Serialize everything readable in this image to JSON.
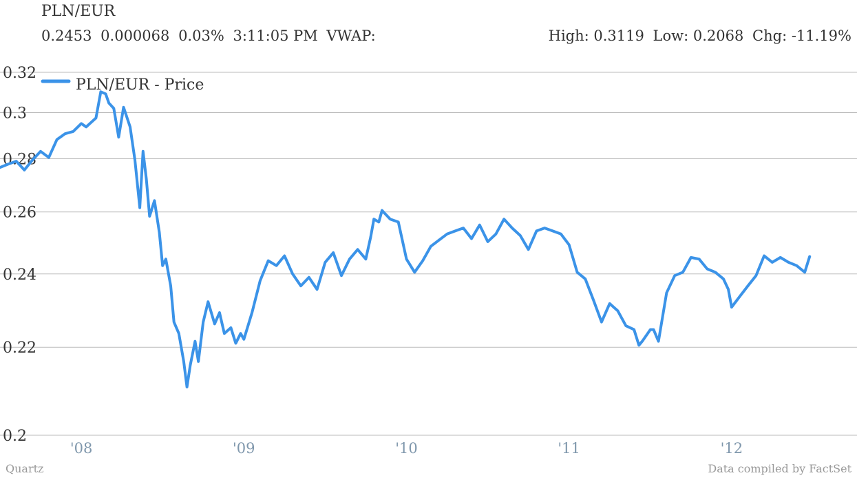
{
  "header": {
    "title": "PLN/EUR",
    "quote": {
      "price": "0.2453",
      "change": "0.000068",
      "change_pct": "0.03%",
      "time": "3:11:05 PM",
      "vwap_label": "VWAP:"
    },
    "stats": {
      "high": "High: 0.3119",
      "low": "Low: 0.2068",
      "chg": "Chg: -11.19%"
    }
  },
  "footer": {
    "source_left": "Quartz",
    "source_right": "Data compiled by FactSet"
  },
  "colors": {
    "line": "#3b93e8",
    "grid": "#bbbbbb",
    "xtick": "#7f97ac",
    "ytick": "#333333"
  },
  "chart_data": {
    "type": "line",
    "title": "",
    "xlabel": "",
    "ylabel": "",
    "x_range": [
      2007.5,
      2012.75
    ],
    "ylim": [
      0.2,
      0.32
    ],
    "y_ticks": [
      0.2,
      0.22,
      0.24,
      0.26,
      0.28,
      0.3,
      0.32
    ],
    "y_tick_labels": [
      "0.2",
      "0.22",
      "0.24",
      "0.26",
      "0.28",
      "0.3",
      "0.32"
    ],
    "x_ticks": [
      2008,
      2009,
      2010,
      2011,
      2012
    ],
    "x_tick_labels": [
      "'08",
      "'09",
      "'10",
      "'11",
      "'12"
    ],
    "grid": "horizontal",
    "legend": "top-left",
    "series": [
      {
        "name": "PLN/EUR - Price",
        "x": [
          2007.5,
          2007.55,
          2007.6,
          2007.65,
          2007.7,
          2007.75,
          2007.8,
          2007.85,
          2007.9,
          2007.95,
          2008.0,
          2008.03,
          2008.06,
          2008.09,
          2008.12,
          2008.15,
          2008.17,
          2008.2,
          2008.23,
          2008.26,
          2008.3,
          2008.33,
          2008.36,
          2008.38,
          2008.4,
          2008.42,
          2008.45,
          2008.48,
          2008.5,
          2008.52,
          2008.55,
          2008.57,
          2008.6,
          2008.63,
          2008.65,
          2008.67,
          2008.7,
          2008.72,
          2008.75,
          2008.78,
          2008.82,
          2008.85,
          2008.88,
          2008.92,
          2008.95,
          2008.98,
          2009.0,
          2009.05,
          2009.1,
          2009.15,
          2009.2,
          2009.25,
          2009.3,
          2009.35,
          2009.4,
          2009.45,
          2009.5,
          2009.55,
          2009.6,
          2009.65,
          2009.7,
          2009.75,
          2009.78,
          2009.8,
          2009.83,
          2009.85,
          2009.9,
          2009.95,
          2010.0,
          2010.05,
          2010.1,
          2010.15,
          2010.2,
          2010.25,
          2010.3,
          2010.35,
          2010.4,
          2010.45,
          2010.5,
          2010.55,
          2010.6,
          2010.65,
          2010.7,
          2010.75,
          2010.8,
          2010.85,
          2010.9,
          2010.95,
          2011.0,
          2011.05,
          2011.1,
          2011.15,
          2011.2,
          2011.25,
          2011.3,
          2011.35,
          2011.4,
          2011.43,
          2011.45,
          2011.5,
          2011.52,
          2011.55,
          2011.6,
          2011.65,
          2011.7,
          2011.75,
          2011.8,
          2011.85,
          2011.9,
          2011.95,
          2011.98,
          2012.0,
          2012.05,
          2012.1,
          2012.15,
          2012.2,
          2012.25,
          2012.3,
          2012.35,
          2012.4,
          2012.45,
          2012.48
        ],
        "values": [
          0.2765,
          0.2778,
          0.279,
          0.2755,
          0.2795,
          0.283,
          0.2805,
          0.288,
          0.2905,
          0.2915,
          0.295,
          0.2935,
          0.2955,
          0.2975,
          0.31,
          0.309,
          0.3045,
          0.302,
          0.289,
          0.3025,
          0.2935,
          0.2795,
          0.2615,
          0.283,
          0.272,
          0.2585,
          0.264,
          0.253,
          0.2425,
          0.2445,
          0.2365,
          0.2265,
          0.2235,
          0.2165,
          0.2105,
          0.2155,
          0.2215,
          0.2165,
          0.2265,
          0.232,
          0.226,
          0.229,
          0.2235,
          0.225,
          0.221,
          0.2235,
          0.222,
          0.229,
          0.238,
          0.244,
          0.2425,
          0.2455,
          0.24,
          0.2365,
          0.239,
          0.2355,
          0.2435,
          0.2465,
          0.2395,
          0.2445,
          0.2475,
          0.2445,
          0.2515,
          0.2575,
          0.2565,
          0.2605,
          0.2575,
          0.2565,
          0.2445,
          0.2405,
          0.244,
          0.2485,
          0.2505,
          0.2525,
          0.2535,
          0.2545,
          0.251,
          0.2555,
          0.25,
          0.2525,
          0.2575,
          0.2545,
          0.252,
          0.2475,
          0.2535,
          0.2545,
          0.2535,
          0.2525,
          0.249,
          0.2405,
          0.2385,
          0.2325,
          0.2265,
          0.2315,
          0.2295,
          0.2255,
          0.2245,
          0.2205,
          0.2215,
          0.2245,
          0.2245,
          0.2215,
          0.2345,
          0.2395,
          0.2405,
          0.245,
          0.2445,
          0.2415,
          0.2405,
          0.2385,
          0.2355,
          0.2305,
          0.2335,
          0.2365,
          0.2395,
          0.2455,
          0.2435,
          0.245,
          0.2435,
          0.2425,
          0.2405,
          0.2453
        ]
      }
    ]
  }
}
